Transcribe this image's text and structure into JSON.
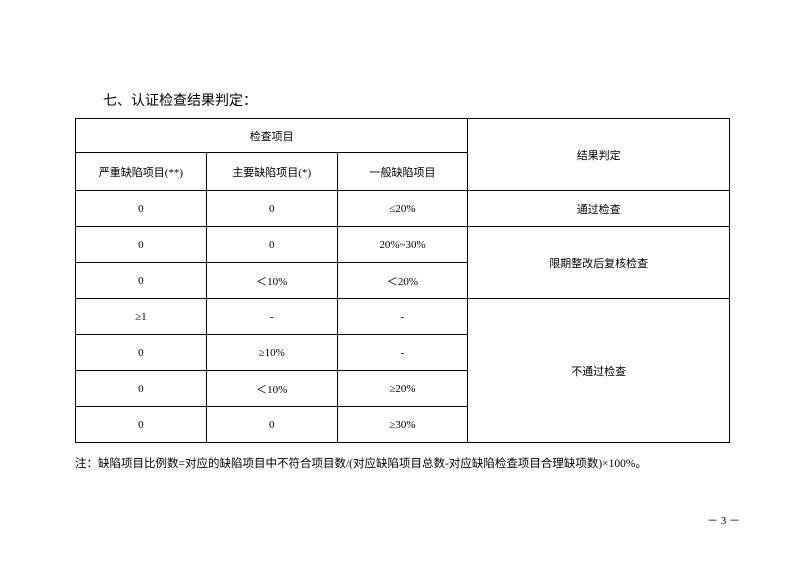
{
  "heading": "七、认证检查结果判定：",
  "table": {
    "header_check_items": "检查项目",
    "header_result": "结果判定",
    "sub_headers": {
      "severe": "严重缺陷项目(**)",
      "major": "主要缺陷项目(*)",
      "general": "一般缺陷项目"
    },
    "rows": [
      {
        "severe": "0",
        "major": "0",
        "general": "≤20%",
        "result": "通过检查",
        "result_rowspan": 1
      },
      {
        "severe": "0",
        "major": "0",
        "general": "20%~30%",
        "result": "限期整改后复核检查",
        "result_rowspan": 2
      },
      {
        "severe": "0",
        "major": "＜10%",
        "general": "＜20%"
      },
      {
        "severe": "≥1",
        "major": "-",
        "general": "-",
        "result": "不通过检查",
        "result_rowspan": 4
      },
      {
        "severe": "0",
        "major": "≥10%",
        "general": "-"
      },
      {
        "severe": "0",
        "major": "＜10%",
        "general": "≥20%"
      },
      {
        "severe": "0",
        "major": "0",
        "general": "≥30%"
      }
    ],
    "col_widths_pct": [
      20,
      20,
      20,
      40
    ]
  },
  "note": "注：缺陷项目比例数=对应的缺陷项目中不符合项目数/(对应缺陷项目总数-对应缺陷检查项目合理缺项数)×100%。",
  "page_number": "－ 3 －"
}
